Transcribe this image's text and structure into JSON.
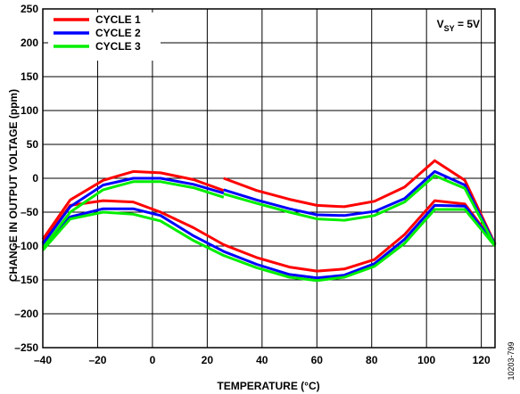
{
  "chart_data": {
    "type": "line",
    "xlabel": "TEMPERATURE (°C)",
    "ylabel": "CHANGE IN OUTPUT VOLTAGE (ppm)",
    "xlim": [
      -40,
      125
    ],
    "ylim": [
      -250,
      250
    ],
    "x_ticks": [
      -40,
      -20,
      0,
      20,
      40,
      60,
      80,
      100,
      120
    ],
    "x_tick_labels": [
      "–40",
      "–20",
      "0",
      "20",
      "40",
      "60",
      "80",
      "100",
      "120"
    ],
    "y_ticks": [
      250,
      200,
      150,
      100,
      50,
      0,
      -50,
      -100,
      -150,
      -200,
      -250
    ],
    "y_tick_labels": [
      "250",
      "200",
      "150",
      "100",
      "50",
      "0",
      "–50",
      "–100",
      "–150",
      "–200",
      "–250"
    ],
    "grid": true,
    "legend_position": "top-left",
    "annotation": {
      "prefix": "V",
      "sub": "SY",
      "suffix": " = 5V"
    },
    "figure_id": "10203-799",
    "series": [
      {
        "name": "CYCLE 1",
        "color": "#ff0000",
        "segments": [
          [
            [
              -40,
              -90
            ],
            [
              -30,
              -32
            ],
            [
              -18,
              -3
            ],
            [
              -7,
              10
            ],
            [
              3,
              8
            ],
            [
              15,
              -2
            ],
            [
              26,
              -18
            ]
          ],
          [
            [
              26,
              0
            ],
            [
              38,
              -18
            ],
            [
              50,
              -31
            ],
            [
              60,
              -40
            ],
            [
              70,
              -42
            ],
            [
              81,
              -34
            ],
            [
              92,
              -13
            ],
            [
              103,
              26
            ],
            [
              114,
              -3
            ],
            [
              125,
              -97
            ]
          ],
          [
            [
              -40,
              -95
            ],
            [
              -30,
              -40
            ],
            [
              -18,
              -33
            ],
            [
              -7,
              -35
            ],
            [
              3,
              -50
            ],
            [
              15,
              -73
            ],
            [
              26,
              -98
            ],
            [
              38,
              -117
            ],
            [
              50,
              -131
            ],
            [
              60,
              -137
            ],
            [
              70,
              -134
            ],
            [
              81,
              -120
            ],
            [
              92,
              -83
            ],
            [
              103,
              -33
            ],
            [
              114,
              -38
            ],
            [
              125,
              -97
            ]
          ]
        ]
      },
      {
        "name": "CYCLE 2",
        "color": "#0000ff",
        "segments": [
          [
            [
              -40,
              -97
            ],
            [
              -30,
              -42
            ],
            [
              -18,
              -10
            ],
            [
              -7,
              0
            ],
            [
              3,
              0
            ],
            [
              15,
              -9
            ],
            [
              26,
              -22
            ]
          ],
          [
            [
              26,
              -17
            ],
            [
              38,
              -32
            ],
            [
              50,
              -45
            ],
            [
              60,
              -54
            ],
            [
              70,
              -55
            ],
            [
              81,
              -49
            ],
            [
              92,
              -30
            ],
            [
              103,
              10
            ],
            [
              114,
              -10
            ],
            [
              125,
              -98
            ]
          ],
          [
            [
              -40,
              -100
            ],
            [
              -30,
              -57
            ],
            [
              -18,
              -45
            ],
            [
              -7,
              -45
            ],
            [
              3,
              -55
            ],
            [
              15,
              -85
            ],
            [
              26,
              -108
            ],
            [
              38,
              -127
            ],
            [
              50,
              -142
            ],
            [
              60,
              -147
            ],
            [
              70,
              -143
            ],
            [
              81,
              -126
            ],
            [
              92,
              -90
            ],
            [
              103,
              -40
            ],
            [
              114,
              -41
            ],
            [
              125,
              -98
            ]
          ]
        ]
      },
      {
        "name": "CYCLE 3",
        "color": "#00ee00",
        "segments": [
          [
            [
              -40,
              -103
            ],
            [
              -30,
              -50
            ],
            [
              -18,
              -17
            ],
            [
              -7,
              -5
            ],
            [
              3,
              -5
            ],
            [
              15,
              -14
            ],
            [
              26,
              -28
            ]
          ],
          [
            [
              26,
              -23
            ],
            [
              38,
              -37
            ],
            [
              50,
              -50
            ],
            [
              60,
              -60
            ],
            [
              70,
              -62
            ],
            [
              81,
              -55
            ],
            [
              92,
              -35
            ],
            [
              103,
              4
            ],
            [
              114,
              -15
            ],
            [
              125,
              -100
            ]
          ],
          [
            [
              -40,
              -106
            ],
            [
              -30,
              -60
            ],
            [
              -18,
              -50
            ],
            [
              -7,
              -53
            ],
            [
              3,
              -63
            ],
            [
              15,
              -92
            ],
            [
              26,
              -114
            ],
            [
              38,
              -132
            ],
            [
              50,
              -146
            ],
            [
              60,
              -151
            ],
            [
              70,
              -146
            ],
            [
              81,
              -130
            ],
            [
              92,
              -96
            ],
            [
              103,
              -46
            ],
            [
              114,
              -46
            ],
            [
              125,
              -100
            ]
          ]
        ]
      }
    ]
  }
}
